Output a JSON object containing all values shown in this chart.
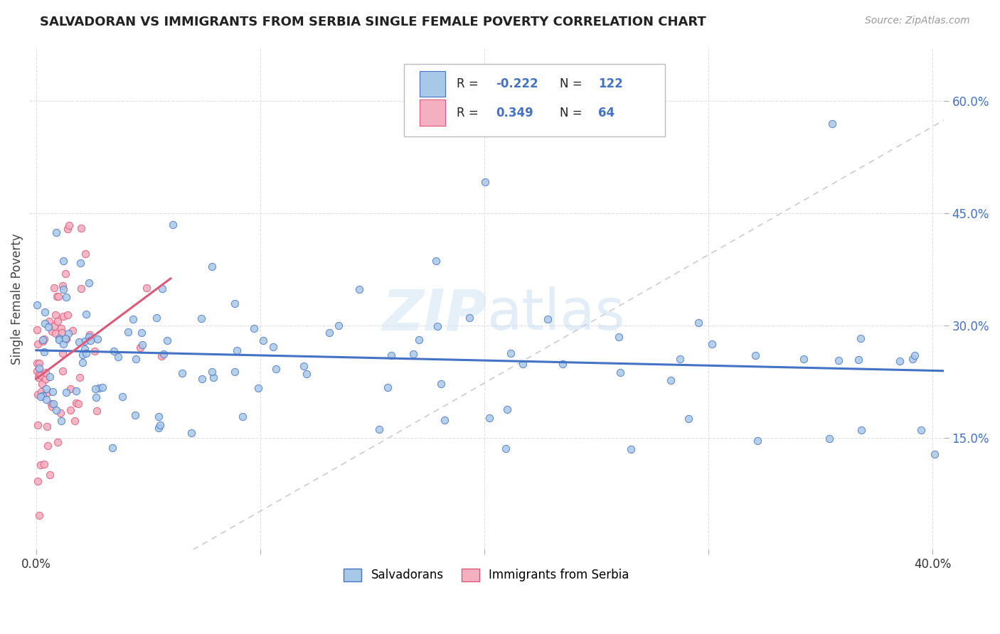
{
  "title": "SALVADORAN VS IMMIGRANTS FROM SERBIA SINGLE FEMALE POVERTY CORRELATION CHART",
  "source": "Source: ZipAtlas.com",
  "ylabel": "Single Female Poverty",
  "watermark": "ZIPatlas",
  "r_salvadoran": -0.222,
  "n_salvadoran": 122,
  "r_serbia": 0.349,
  "n_serbia": 64,
  "xlim": [
    0.0,
    0.4
  ],
  "ylim": [
    0.0,
    0.65
  ],
  "color_salvadoran": "#a8c8e8",
  "color_serbia": "#f4b0c0",
  "line_color_salvadoran": "#4472c4",
  "line_color_serbia": "#e05878",
  "identity_line_color": "#cccccc",
  "background_color": "#ffffff",
  "grid_color": "#e0e0e0",
  "ytick_color": "#4472c4"
}
